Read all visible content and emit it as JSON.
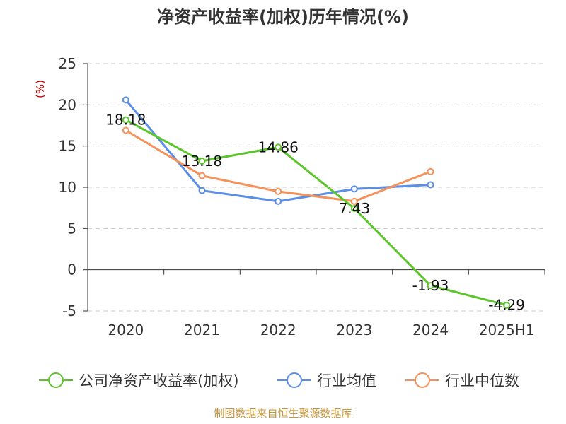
{
  "chart_data": {
    "type": "line",
    "title": "净资产收益率(加权)历年情况(%)",
    "ylabel": "(%)",
    "xlabel": "",
    "categories": [
      "2020",
      "2021",
      "2022",
      "2023",
      "2024",
      "2025H1"
    ],
    "ylim": [
      -5,
      25
    ],
    "yticks": [
      25,
      20,
      15,
      10,
      5,
      0,
      -5
    ],
    "grid": true,
    "legend_position": "bottom",
    "series": [
      {
        "name": "公司净资产收益率(加权)",
        "color": "#5cc52b",
        "values": [
          18.18,
          13.18,
          14.86,
          7.43,
          -1.93,
          -4.29
        ],
        "labels": [
          "18.18",
          "13.18",
          "14.86",
          "7.43",
          "-1.93",
          "-4.29"
        ]
      },
      {
        "name": "行业均值",
        "color": "#5b8ee6",
        "values": [
          20.6,
          9.6,
          8.3,
          9.8,
          10.3,
          null
        ]
      },
      {
        "name": "行业中位数",
        "color": "#f5915a",
        "values": [
          16.9,
          11.4,
          9.5,
          8.3,
          11.9,
          null
        ]
      }
    ]
  },
  "source_text": "制图数据来自恒生聚源数据库"
}
